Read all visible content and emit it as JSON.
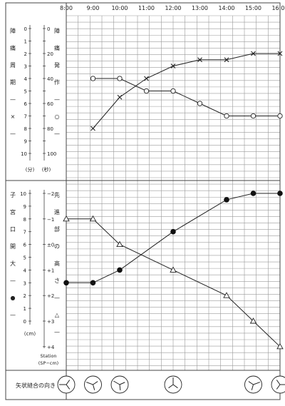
{
  "chart_data": {
    "type": "line",
    "times": [
      "8:00",
      "9:00",
      "10:00",
      "11:00",
      "12:00",
      "13:00",
      "14:00",
      "15:00",
      "16:00"
    ],
    "upper": {
      "left_vertical_label": [
        "陣",
        "痛",
        "周",
        "期",
        "—",
        "×",
        "—"
      ],
      "left_unit": "(分)",
      "left_ticks": [
        0,
        1,
        2,
        3,
        4,
        5,
        6,
        7,
        8,
        9,
        10
      ],
      "right_vertical_label": [
        "陣",
        "痛",
        "発",
        "作",
        "—",
        "○",
        "—"
      ],
      "right_unit": "(秒)",
      "right_ticks": [
        {
          "v": 0,
          "label": "0"
        },
        {
          "v": 20,
          "label": "20"
        },
        {
          "v": 40,
          "label": "40"
        },
        {
          "v": 60,
          "label": "60"
        },
        {
          "v": 80,
          "label": "80"
        },
        {
          "v": 100,
          "label": "100"
        }
      ],
      "series": [
        {
          "marker": "x",
          "axis": "left",
          "points": [
            {
              "t": 9,
              "y": 8
            },
            {
              "t": 10,
              "y": 5.5
            },
            {
              "t": 11,
              "y": 4
            },
            {
              "t": 12,
              "y": 3
            },
            {
              "t": 13,
              "y": 2.5
            },
            {
              "t": 14,
              "y": 2.5
            },
            {
              "t": 15,
              "y": 2
            },
            {
              "t": 16,
              "y": 2
            }
          ]
        },
        {
          "marker": "open-circle",
          "axis": "right",
          "points": [
            {
              "t": 9,
              "y": 40
            },
            {
              "t": 10,
              "y": 40
            },
            {
              "t": 11,
              "y": 50
            },
            {
              "t": 12,
              "y": 50
            },
            {
              "t": 13,
              "y": 60
            },
            {
              "t": 14,
              "y": 70
            },
            {
              "t": 15,
              "y": 70
            },
            {
              "t": 16,
              "y": 70
            }
          ]
        }
      ]
    },
    "lower": {
      "left_vertical_label": [
        "子",
        "宮",
        "口",
        "開",
        "大",
        "—",
        "●",
        "—"
      ],
      "left_unit": "(cm)",
      "left_ticks": [
        10,
        9,
        8,
        7,
        6,
        5,
        4,
        3,
        2,
        1,
        0
      ],
      "right_vertical_label": [
        "先",
        "進",
        "部",
        "の",
        "高",
        "さ",
        "—",
        "△",
        "—"
      ],
      "right_ticks": [
        {
          "v": -2,
          "label": "−2"
        },
        {
          "v": -1,
          "label": "−1"
        },
        {
          "v": 0,
          "label": "±0"
        },
        {
          "v": 1,
          "label": "+1"
        },
        {
          "v": 2,
          "label": "+2"
        },
        {
          "v": 3,
          "label": "+3"
        },
        {
          "v": 4,
          "label": "+4"
        }
      ],
      "right_unit_line1": "Station",
      "right_unit_line2": "(SP−cm)",
      "series": [
        {
          "marker": "filled-circle",
          "axis": "left",
          "points": [
            {
              "t": 8,
              "y": 3
            },
            {
              "t": 9,
              "y": 3
            },
            {
              "t": 10,
              "y": 4
            },
            {
              "t": 12,
              "y": 7
            },
            {
              "t": 14,
              "y": 9.5
            },
            {
              "t": 15,
              "y": 10
            },
            {
              "t": 16,
              "y": 10
            }
          ]
        },
        {
          "marker": "open-triangle",
          "axis": "right",
          "points": [
            {
              "t": 8,
              "y": -1
            },
            {
              "t": 9,
              "y": -1
            },
            {
              "t": 10,
              "y": 0
            },
            {
              "t": 12,
              "y": 1
            },
            {
              "t": 14,
              "y": 2
            },
            {
              "t": 15,
              "y": 3
            },
            {
              "t": 16,
              "y": 4
            }
          ]
        }
      ]
    },
    "bottom_row": {
      "label": "矢状縫合の向き",
      "suture_times": [
        8,
        9,
        10,
        12,
        15,
        16
      ]
    }
  }
}
